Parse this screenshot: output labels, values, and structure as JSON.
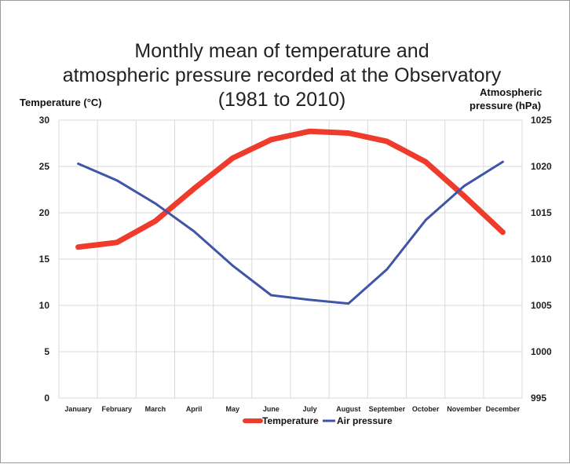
{
  "chart_data": {
    "type": "line",
    "title_lines": [
      "Monthly mean of temperature and",
      "atmospheric pressure recorded at the Observatory",
      "(1981 to 2010)"
    ],
    "left_axis_label": "Temperature (°C)",
    "right_axis_label_lines": [
      "Atmospheric",
      "pressure (hPa)"
    ],
    "categories": [
      "January",
      "February",
      "March",
      "April",
      "May",
      "June",
      "July",
      "August",
      "September",
      "October",
      "November",
      "December"
    ],
    "left_ylim": [
      0,
      30
    ],
    "left_ticks": [
      0,
      5,
      10,
      15,
      20,
      25,
      30
    ],
    "right_ylim": [
      995,
      1025
    ],
    "right_ticks": [
      995,
      1000,
      1005,
      1010,
      1015,
      1020,
      1025
    ],
    "grid": true,
    "legend_position": "bottom",
    "series": [
      {
        "name": "Temperature",
        "axis": "left",
        "color": "#EE3B2B",
        "values": [
          16.3,
          16.8,
          19.1,
          22.6,
          25.9,
          27.9,
          28.8,
          28.6,
          27.7,
          25.5,
          21.8,
          17.9
        ]
      },
      {
        "name": "Air pressure",
        "axis": "right",
        "color": "#3F55A8",
        "values": [
          1020.3,
          1018.5,
          1016.0,
          1013.0,
          1009.3,
          1006.1,
          1005.6,
          1005.2,
          1008.9,
          1014.2,
          1017.9,
          1020.5
        ]
      }
    ]
  }
}
